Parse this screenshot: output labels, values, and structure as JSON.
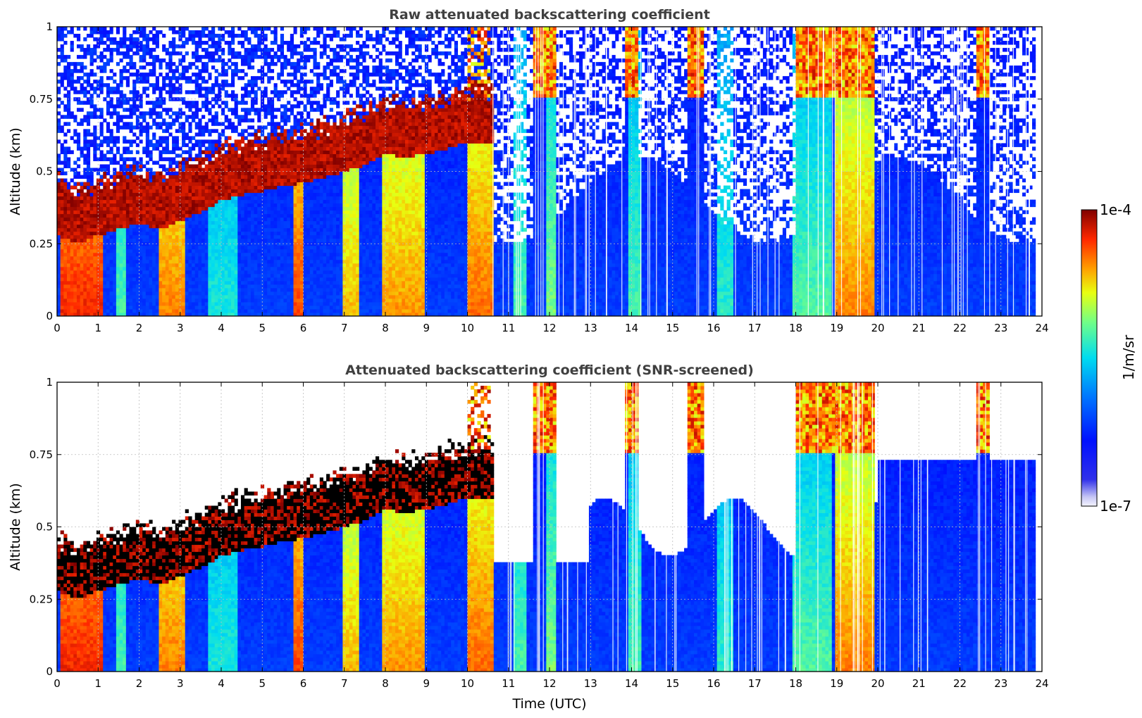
{
  "chart_data": [
    {
      "type": "heatmap",
      "title": "Raw attenuated backscattering coefficient",
      "xlabel": "",
      "ylabel": "Altitude (km)",
      "xlim": [
        0,
        24
      ],
      "ylim": [
        0,
        1
      ],
      "x_ticks": [
        "0",
        "1",
        "2",
        "3",
        "4",
        "5",
        "6",
        "7",
        "8",
        "9",
        "10",
        "11",
        "12",
        "13",
        "14",
        "15",
        "16",
        "17",
        "18",
        "19",
        "20",
        "21",
        "22",
        "23",
        "24"
      ],
      "y_ticks": [
        "0",
        "0.25",
        "0.5",
        "0.75",
        "1"
      ],
      "grid": true,
      "screened": false,
      "cloud_base_km": [
        [
          0.0,
          0.28
        ],
        [
          0.5,
          0.25
        ],
        [
          1.0,
          0.28
        ],
        [
          1.5,
          0.3
        ],
        [
          2.0,
          0.32
        ],
        [
          2.5,
          0.3
        ],
        [
          3.0,
          0.33
        ],
        [
          3.5,
          0.36
        ],
        [
          4.0,
          0.4
        ],
        [
          4.5,
          0.42
        ],
        [
          5.0,
          0.43
        ],
        [
          5.5,
          0.45
        ],
        [
          6.0,
          0.46
        ],
        [
          6.5,
          0.48
        ],
        [
          7.0,
          0.5
        ],
        [
          7.5,
          0.52
        ],
        [
          8.0,
          0.56
        ],
        [
          8.5,
          0.55
        ],
        [
          9.0,
          0.56
        ],
        [
          9.5,
          0.58
        ],
        [
          10.0,
          0.6
        ],
        [
          10.5,
          0.6
        ]
      ]
    },
    {
      "type": "heatmap",
      "title": "Attenuated backscattering coefficient (SNR-screened)",
      "xlabel": "Time (UTC)",
      "ylabel": "Altitude (km)",
      "xlim": [
        0,
        24
      ],
      "ylim": [
        0,
        1
      ],
      "x_ticks": [
        "0",
        "1",
        "2",
        "3",
        "4",
        "5",
        "6",
        "7",
        "8",
        "9",
        "10",
        "11",
        "12",
        "13",
        "14",
        "15",
        "16",
        "17",
        "18",
        "19",
        "20",
        "21",
        "22",
        "23",
        "24"
      ],
      "y_ticks": [
        "0",
        "0.25",
        "0.5",
        "0.75",
        "1"
      ],
      "grid": true,
      "screened": true,
      "cloud_base_km": [
        [
          0.0,
          0.28
        ],
        [
          0.5,
          0.25
        ],
        [
          1.0,
          0.28
        ],
        [
          1.5,
          0.3
        ],
        [
          2.0,
          0.32
        ],
        [
          2.5,
          0.3
        ],
        [
          3.0,
          0.33
        ],
        [
          3.5,
          0.36
        ],
        [
          4.0,
          0.4
        ],
        [
          4.5,
          0.42
        ],
        [
          5.0,
          0.43
        ],
        [
          5.5,
          0.45
        ],
        [
          6.0,
          0.46
        ],
        [
          6.5,
          0.48
        ],
        [
          7.0,
          0.5
        ],
        [
          7.5,
          0.52
        ],
        [
          8.0,
          0.56
        ],
        [
          8.5,
          0.55
        ],
        [
          9.0,
          0.56
        ],
        [
          9.5,
          0.58
        ],
        [
          10.0,
          0.6
        ],
        [
          10.5,
          0.6
        ]
      ]
    }
  ],
  "colorbar": {
    "label": "1/m/sr",
    "max_label": "1e-4",
    "min_label": "1e-7",
    "log_range": [
      -7,
      -4
    ],
    "colormap": "jet"
  }
}
